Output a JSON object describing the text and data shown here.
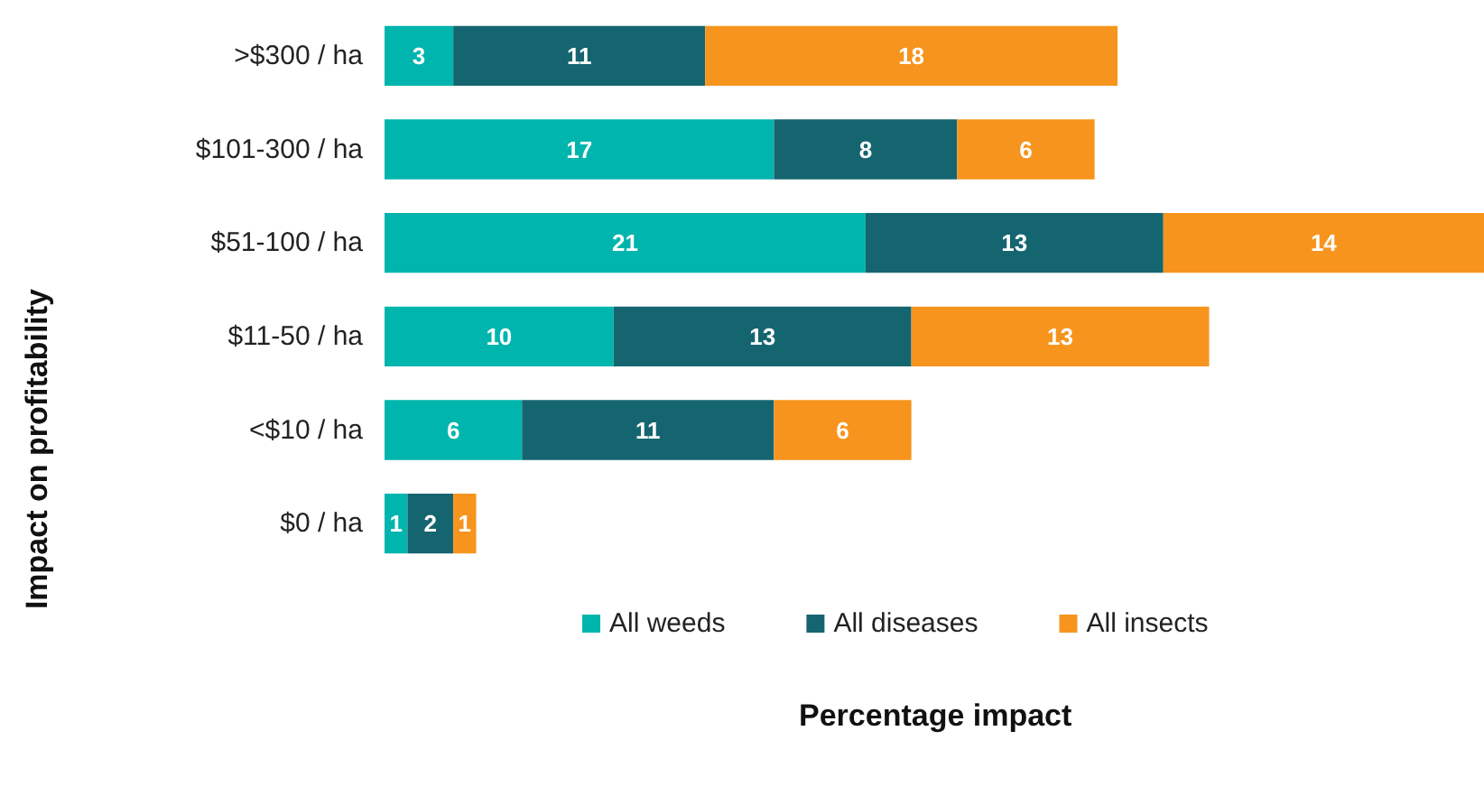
{
  "chart_data": {
    "type": "bar",
    "orientation": "horizontal",
    "stacked": true,
    "data_labels": true,
    "xlabel": "Percentage impact",
    "ylabel": "Impact on profitability",
    "legend": "bottom",
    "categories": [
      ">$300 / ha",
      "$101-300 / ha",
      "$51-100 / ha",
      "$11-50 / ha",
      "<$10 / ha",
      "$0 / ha"
    ],
    "series": [
      {
        "name": "All weeds",
        "color": "#00b5ad",
        "values": [
          3,
          17,
          21,
          10,
          6,
          1
        ]
      },
      {
        "name": "All diseases",
        "color": "#156570",
        "values": [
          11,
          8,
          13,
          13,
          11,
          2
        ]
      },
      {
        "name": "All insects",
        "color": "#f7941d",
        "values": [
          18,
          6,
          14,
          13,
          6,
          1
        ]
      }
    ]
  }
}
